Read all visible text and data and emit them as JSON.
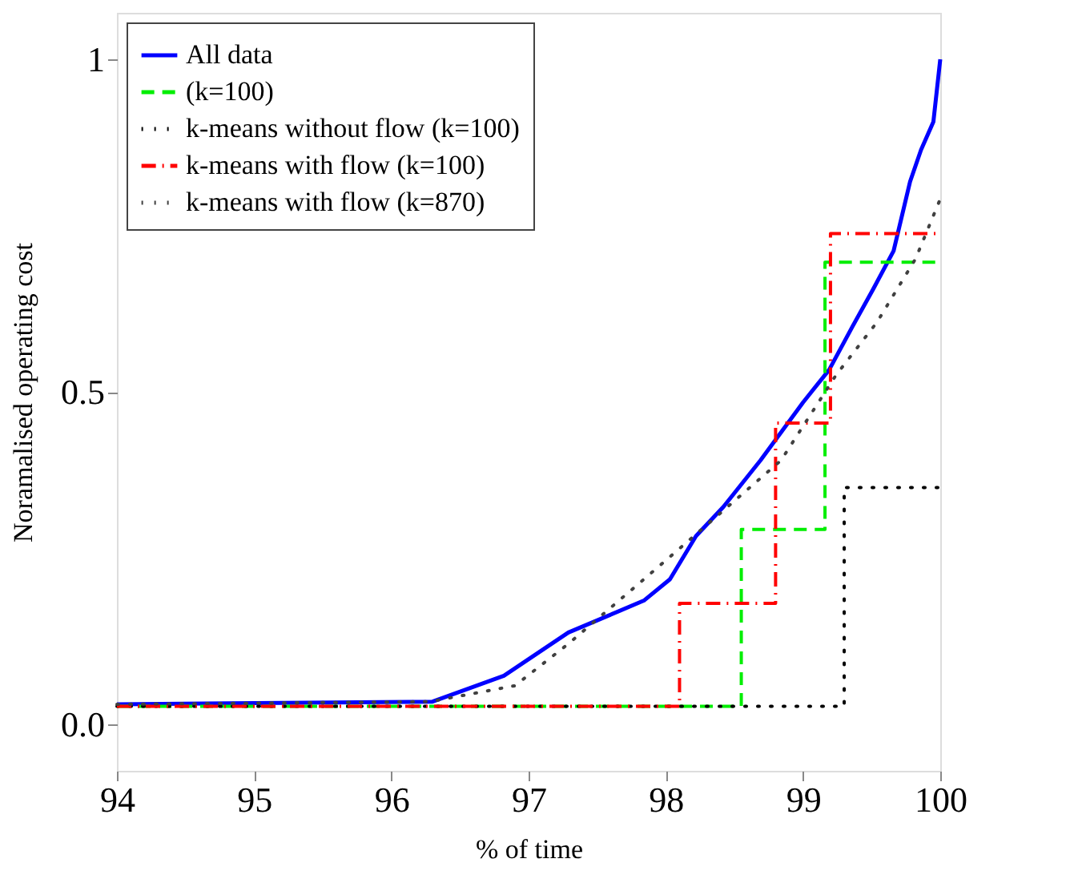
{
  "chart_data": {
    "type": "line",
    "xlabel": "% of time",
    "ylabel": "Noramalised operating cost",
    "xlim": [
      94,
      100
    ],
    "ylim": [
      -0.07,
      1.07
    ],
    "xticks": [
      94,
      95,
      96,
      97,
      98,
      99,
      100
    ],
    "yticks": [
      {
        "value": 0,
        "label": "0.0"
      },
      0.5,
      1
    ],
    "grid": false,
    "legend": "top left",
    "marker": "none",
    "series": [
      {
        "name": "All data",
        "color": "#0000ff",
        "type": "line",
        "line_style": "solid",
        "x": [
          94,
          96.3,
          96.82,
          97.29,
          97.84,
          98.03,
          98.22,
          98.42,
          98.69,
          99.0,
          99.19,
          99.36,
          99.51,
          99.66,
          99.78,
          99.86,
          99.95,
          100
        ],
        "values": [
          0.03,
          0.034,
          0.073,
          0.138,
          0.186,
          0.218,
          0.283,
          0.327,
          0.397,
          0.484,
          0.533,
          0.598,
          0.654,
          0.712,
          0.816,
          0.864,
          0.906,
          1.0
        ]
      },
      {
        "name": "(k=100)",
        "color": "#00ee00",
        "type": "step",
        "line_style": "dashed",
        "x": [
          94,
          98.55,
          99.16,
          100
        ],
        "values": [
          0.027,
          0.293,
          0.695,
          0.695
        ]
      },
      {
        "name": "k-means without flow (k=100)",
        "color": "#000000",
        "type": "step",
        "line_style": "dotted",
        "x": [
          94,
          99.3,
          100
        ],
        "values": [
          0.027,
          0.356,
          0.356
        ]
      },
      {
        "name": "k-means with flow (k=100)",
        "color": "#ff0000",
        "type": "step",
        "line_style": "dashdot",
        "x": [
          94,
          98.1,
          98.8,
          99.2,
          100
        ],
        "values": [
          0.027,
          0.182,
          0.453,
          0.738,
          0.738
        ]
      },
      {
        "name": "k-means with flow (k=870)",
        "color": "#404040",
        "type": "line",
        "line_style": "dotted",
        "x": [
          94,
          96.28,
          96.9,
          97.29,
          97.84,
          98.3,
          98.84,
          99.24,
          99.54,
          99.82,
          100
        ],
        "values": [
          0.03,
          0.034,
          0.058,
          0.121,
          0.218,
          0.3,
          0.397,
          0.525,
          0.605,
          0.7,
          0.79
        ]
      }
    ]
  }
}
